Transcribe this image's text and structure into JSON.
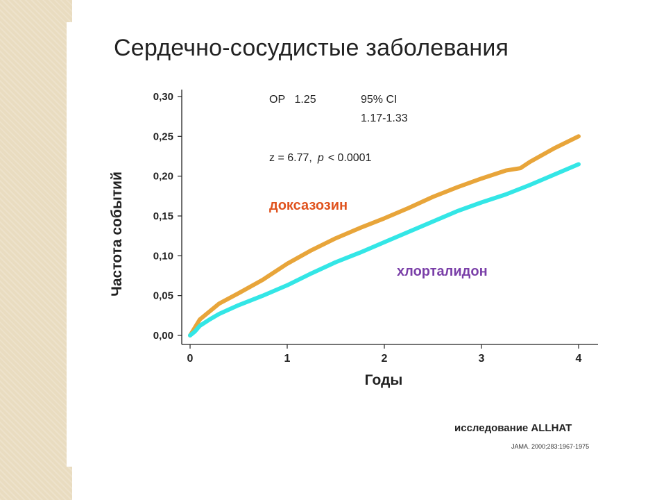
{
  "title": "Сердечно-сосудистые заболевания",
  "annotations": {
    "or_text": "ОР   1.25",
    "ci_label": "95% CI",
    "ci_range": "1.17-1.33",
    "z_text": "z = 6.77,",
    "p_letter": "p",
    "p_rest": "< 0.0001"
  },
  "source": {
    "study": "исследование ALLHAT",
    "reference": "JAMA. 2000;283:1967-1975"
  },
  "chart_data": {
    "type": "line",
    "xlabel": "Годы",
    "ylabel": "Частота событий",
    "xlim": [
      0,
      4
    ],
    "ylim": [
      0,
      0.3
    ],
    "x_ticks": [
      "0",
      "1",
      "2",
      "3",
      "4"
    ],
    "y_ticks": [
      "0,00",
      "0,05",
      "0,10",
      "0,15",
      "0,20",
      "0,25",
      "0,30"
    ],
    "grid": false,
    "series": [
      {
        "name": "доксазозин",
        "color": "#e8a53a",
        "label_color": "#e0531e",
        "x": [
          0,
          0.05,
          0.1,
          0.2,
          0.3,
          0.5,
          0.75,
          1.0,
          1.25,
          1.5,
          1.75,
          2.0,
          2.25,
          2.5,
          2.75,
          3.0,
          3.25,
          3.4,
          3.5,
          3.75,
          4.0
        ],
        "y": [
          0.0,
          0.01,
          0.02,
          0.03,
          0.04,
          0.053,
          0.07,
          0.09,
          0.107,
          0.122,
          0.135,
          0.147,
          0.16,
          0.174,
          0.186,
          0.197,
          0.207,
          0.21,
          0.218,
          0.235,
          0.25
        ]
      },
      {
        "name": "хлорталидон",
        "color": "#33e6e6",
        "label_color": "#7a3fa8",
        "x": [
          0,
          0.05,
          0.1,
          0.2,
          0.3,
          0.5,
          0.75,
          1.0,
          1.25,
          1.5,
          1.75,
          2.0,
          2.25,
          2.5,
          2.75,
          3.0,
          3.25,
          3.5,
          3.75,
          4.0
        ],
        "y": [
          0.0,
          0.005,
          0.012,
          0.02,
          0.027,
          0.038,
          0.05,
          0.063,
          0.078,
          0.092,
          0.104,
          0.117,
          0.13,
          0.143,
          0.156,
          0.167,
          0.177,
          0.189,
          0.202,
          0.215
        ]
      }
    ]
  }
}
